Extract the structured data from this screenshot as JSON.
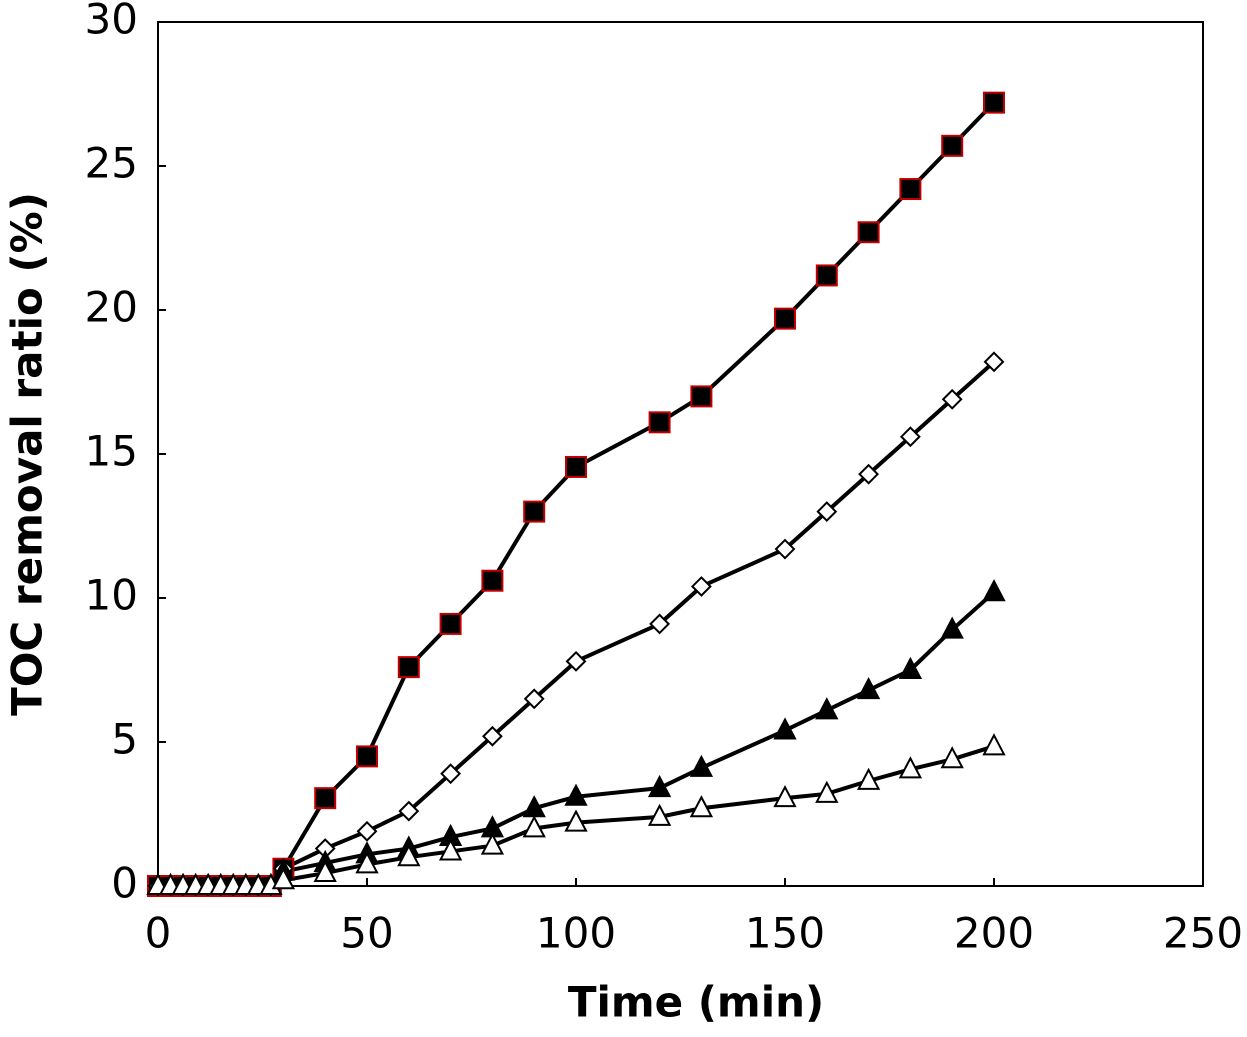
{
  "chart_data": {
    "type": "line",
    "xlabel": "Time (min)",
    "ylabel": "TOC  removal ratio (%)",
    "x": [
      0,
      3,
      6,
      9,
      12,
      15,
      18,
      21,
      24,
      27,
      30,
      40,
      50,
      60,
      70,
      80,
      90,
      100,
      120,
      130,
      150,
      160,
      170,
      180,
      190,
      200
    ],
    "series": [
      {
        "color": "#000000",
        "marker": "square",
        "marker_fill": "#000000",
        "marker_edge": "#c00000",
        "values": [
          0,
          0,
          0,
          0,
          0,
          0,
          0,
          0,
          0,
          0,
          0.6,
          3.05,
          4.5,
          7.6,
          9.1,
          10.6,
          13.0,
          14.55,
          16.1,
          17.0,
          19.7,
          21.2,
          22.7,
          24.2,
          25.7,
          27.2
        ]
      },
      {
        "color": "#000000",
        "marker": "diamond",
        "marker_fill": "#ffffff",
        "marker_edge": "#000000",
        "values": [
          0,
          0,
          0,
          0,
          0,
          0,
          0,
          0,
          0,
          0,
          0.6,
          1.3,
          1.9,
          2.6,
          3.9,
          5.2,
          6.5,
          7.8,
          9.1,
          10.4,
          11.7,
          13.0,
          14.3,
          15.6,
          16.9,
          18.2
        ]
      },
      {
        "color": "#000000",
        "marker": "triangle",
        "marker_fill": "#000000",
        "marker_edge": "#000000",
        "values": [
          0,
          0,
          0,
          0,
          0,
          0,
          0,
          0,
          0,
          0,
          0.5,
          0.8,
          1.1,
          1.3,
          1.7,
          2.0,
          2.7,
          3.1,
          3.4,
          4.1,
          5.4,
          6.1,
          6.8,
          7.5,
          8.9,
          10.2
        ]
      },
      {
        "color": "#000000",
        "marker": "triangle",
        "marker_fill": "#ffffff",
        "marker_edge": "#000000",
        "values": [
          0,
          0,
          0,
          0,
          0,
          0,
          0,
          0,
          0,
          0,
          0.2,
          0.45,
          0.75,
          1.0,
          1.2,
          1.4,
          2.0,
          2.2,
          2.4,
          2.7,
          3.05,
          3.2,
          3.65,
          4.05,
          4.4,
          4.85
        ]
      }
    ],
    "xlim": [
      0,
      250
    ],
    "xticks": [
      0,
      50,
      100,
      150,
      200,
      250
    ],
    "ylim": [
      0,
      30
    ],
    "yticks": [
      0,
      5,
      10,
      15,
      20,
      25,
      30
    ],
    "grid": false
  }
}
